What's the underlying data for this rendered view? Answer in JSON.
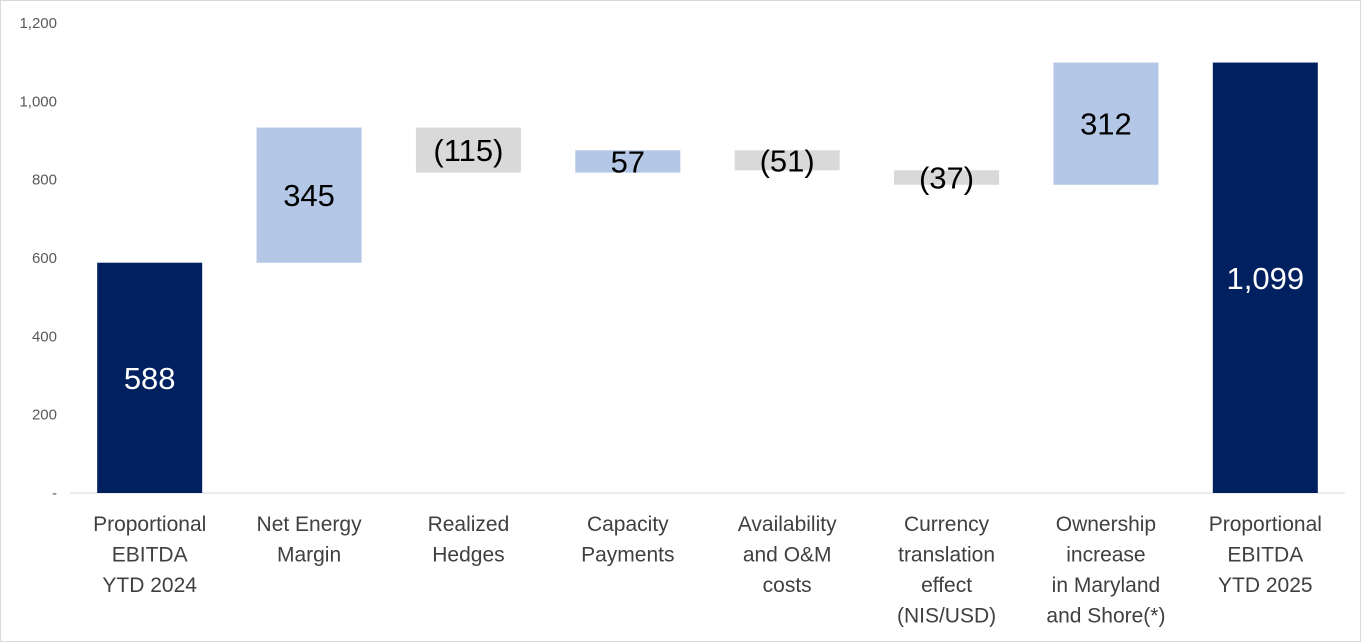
{
  "chart_data": {
    "type": "waterfall",
    "categories": [
      [
        "Proportional",
        "EBITDA",
        "YTD 2024"
      ],
      [
        "Net Energy",
        "Margin"
      ],
      [
        "Realized",
        "Hedges"
      ],
      [
        "Capacity",
        "Payments"
      ],
      [
        "Availability",
        "and O&M",
        "costs"
      ],
      [
        "Currency",
        "translation",
        "effect",
        "(NIS/USD)"
      ],
      [
        "Ownership",
        "increase",
        "in Maryland",
        "and Shore(*)"
      ],
      [
        "Proportional",
        "EBITDA",
        "YTD 2025"
      ]
    ],
    "steps": [
      {
        "kind": "total",
        "value": 588,
        "label": "588"
      },
      {
        "kind": "increase",
        "value": 345,
        "label": "345"
      },
      {
        "kind": "decrease",
        "value": -115,
        "label": "(115)"
      },
      {
        "kind": "increase",
        "value": 57,
        "label": "57"
      },
      {
        "kind": "decrease",
        "value": -51,
        "label": "(51)"
      },
      {
        "kind": "decrease",
        "value": -37,
        "label": "(37)"
      },
      {
        "kind": "increase",
        "value": 312,
        "label": "312"
      },
      {
        "kind": "total",
        "value": 1099,
        "label": "1,099"
      }
    ],
    "ylim": [
      0,
      1200
    ],
    "yticks": [
      {
        "value": 0,
        "label": "-"
      },
      {
        "value": 200,
        "label": "200"
      },
      {
        "value": 400,
        "label": "400"
      },
      {
        "value": 600,
        "label": "600"
      },
      {
        "value": 800,
        "label": "800"
      },
      {
        "value": 1000,
        "label": "1,000"
      },
      {
        "value": 1200,
        "label": "1,200"
      }
    ],
    "grid": false,
    "legend": "none",
    "colors": {
      "total": "#002060",
      "increase": "#B4C7E7",
      "decrease": "#D9D9D9",
      "total_label": "#ffffff",
      "step_label": "#000000",
      "axis": "#d9d9d9"
    }
  }
}
